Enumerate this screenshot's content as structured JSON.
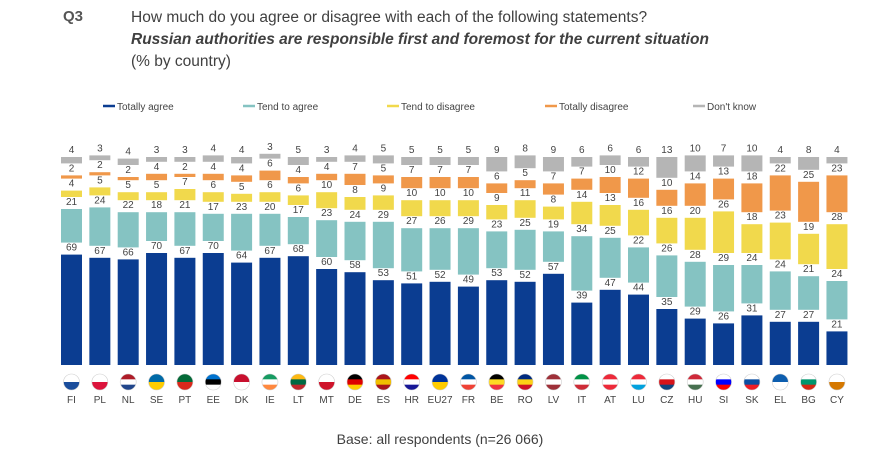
{
  "header": {
    "q_number": "Q3",
    "question": "How much do you agree or disagree with each of the following statements?",
    "statement": "Russian authorities are responsible first and foremost for the current situation",
    "unit": "(% by country)"
  },
  "footer": {
    "base": "Base: all respondents (n=26 066)"
  },
  "chart_data": {
    "type": "bar",
    "stacked": true,
    "categories": [
      "FI",
      "PL",
      "NL",
      "SE",
      "PT",
      "EE",
      "DK",
      "IE",
      "LT",
      "MT",
      "DE",
      "ES",
      "HR",
      "EU27",
      "FR",
      "BE",
      "RO",
      "LV",
      "IT",
      "AT",
      "LU",
      "CZ",
      "HU",
      "SI",
      "SK",
      "EL",
      "BG",
      "CY"
    ],
    "legend_position": "top",
    "series": [
      {
        "name": "Totally agree",
        "color": "#0b3d91",
        "values": [
          69,
          67,
          66,
          70,
          67,
          70,
          64,
          67,
          68,
          60,
          58,
          53,
          51,
          52,
          49,
          53,
          52,
          57,
          39,
          47,
          44,
          35,
          29,
          26,
          31,
          27,
          27,
          21
        ]
      },
      {
        "name": "Tend to agree",
        "color": "#85c3c2",
        "values": [
          21,
          24,
          22,
          18,
          21,
          17,
          23,
          20,
          17,
          23,
          24,
          29,
          27,
          26,
          29,
          23,
          25,
          19,
          34,
          25,
          22,
          26,
          28,
          29,
          24,
          24,
          21,
          24
        ]
      },
      {
        "name": "Tend to disagree",
        "color": "#f1d94c",
        "values": [
          4,
          5,
          5,
          5,
          7,
          6,
          5,
          6,
          6,
          10,
          8,
          9,
          10,
          10,
          10,
          9,
          11,
          8,
          14,
          13,
          16,
          16,
          20,
          26,
          18,
          23,
          19,
          28
        ]
      },
      {
        "name": "Totally disagree",
        "color": "#f0984a",
        "values": [
          2,
          2,
          2,
          4,
          2,
          4,
          4,
          6,
          4,
          4,
          7,
          5,
          7,
          7,
          7,
          6,
          5,
          7,
          7,
          10,
          12,
          10,
          14,
          13,
          18,
          22,
          25,
          23
        ]
      },
      {
        "name": "Don't know",
        "color": "#b5b5b5",
        "values": [
          4,
          3,
          4,
          3,
          3,
          4,
          4,
          3,
          5,
          3,
          4,
          5,
          5,
          5,
          5,
          9,
          8,
          9,
          6,
          6,
          6,
          13,
          10,
          7,
          10,
          4,
          8,
          4
        ]
      }
    ],
    "flag_colors": {
      "FI": [
        "#ffffff",
        "#1a4d9c"
      ],
      "PL": [
        "#ffffff",
        "#dc143c"
      ],
      "NL": [
        "#ae1c28",
        "#ffffff",
        "#21468b"
      ],
      "SE": [
        "#006aa7",
        "#fecc00"
      ],
      "PT": [
        "#046a38",
        "#da291c"
      ],
      "EE": [
        "#0072ce",
        "#000000",
        "#ffffff"
      ],
      "DK": [
        "#c8102e",
        "#ffffff"
      ],
      "IE": [
        "#169b62",
        "#ffffff",
        "#ff883e"
      ],
      "LT": [
        "#fdb913",
        "#006a44",
        "#c1272d"
      ],
      "MT": [
        "#ffffff",
        "#cf142b"
      ],
      "DE": [
        "#000000",
        "#dd0000",
        "#ffce00"
      ],
      "ES": [
        "#aa151b",
        "#f1bf00",
        "#aa151b"
      ],
      "HR": [
        "#ff0000",
        "#ffffff",
        "#171796"
      ],
      "EU27": [
        "#003399",
        "#ffcc00"
      ],
      "FR": [
        "#0055a4",
        "#ffffff",
        "#ef4135"
      ],
      "BE": [
        "#000000",
        "#fdda24",
        "#ef3340"
      ],
      "RO": [
        "#002b7f",
        "#fcd116",
        "#ce1126"
      ],
      "LV": [
        "#9e3039",
        "#ffffff",
        "#9e3039"
      ],
      "IT": [
        "#009246",
        "#ffffff",
        "#ce2b37"
      ],
      "AT": [
        "#ed2939",
        "#ffffff",
        "#ed2939"
      ],
      "LU": [
        "#ed2939",
        "#ffffff",
        "#00a1de"
      ],
      "CZ": [
        "#ffffff",
        "#d7141a",
        "#11457e"
      ],
      "HU": [
        "#ce2939",
        "#ffffff",
        "#477050"
      ],
      "SI": [
        "#ffffff",
        "#0000ff",
        "#ff0000"
      ],
      "SK": [
        "#ffffff",
        "#0b4ea2",
        "#ee1c25"
      ],
      "EL": [
        "#0d5eaf",
        "#ffffff"
      ],
      "BG": [
        "#ffffff",
        "#00966e",
        "#d62612"
      ],
      "CY": [
        "#ffffff",
        "#d57800"
      ]
    }
  }
}
